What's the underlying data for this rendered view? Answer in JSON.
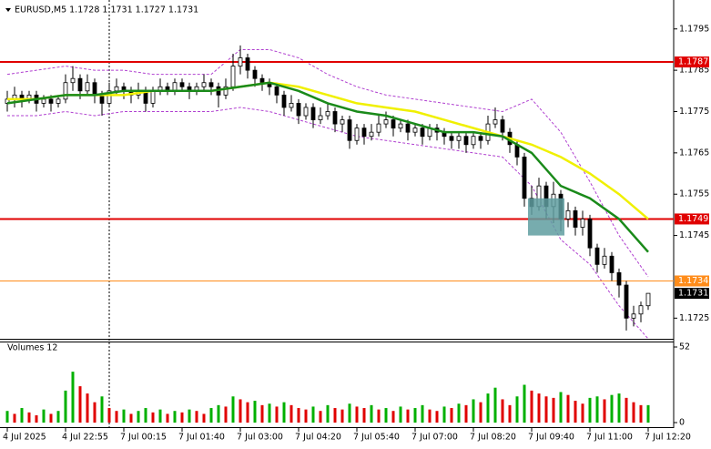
{
  "chart_data": {
    "type": "candlestick",
    "title": "EURUSD,M5  1.1728 1.1731 1.1727 1.1731",
    "categories": [
      "4 Jul 2025",
      null,
      null,
      null,
      null,
      null,
      null,
      null,
      "4 Jul 22:55",
      null,
      null,
      null,
      null,
      null,
      null,
      null,
      "7 Jul 00:15",
      null,
      null,
      null,
      null,
      null,
      null,
      null,
      "7 Jul 01:40",
      null,
      null,
      null,
      null,
      null,
      null,
      null,
      "7 Jul 03:00",
      null,
      null,
      null,
      null,
      null,
      null,
      null,
      "7 Jul 04:20",
      null,
      null,
      null,
      null,
      null,
      null,
      null,
      "7 Jul 05:40",
      null,
      null,
      null,
      null,
      null,
      null,
      null,
      "7 Jul 07:00",
      null,
      null,
      null,
      null,
      null,
      null,
      null,
      "7 Jul 08:20",
      null,
      null,
      null,
      null,
      null,
      null,
      null,
      "7 Jul 09:40",
      null,
      null,
      null,
      null,
      null,
      null,
      null,
      "7 Jul 11:00",
      null,
      null,
      null,
      null,
      null,
      null,
      null,
      "7 Jul 12:20"
    ],
    "open": [
      1.1777,
      1.1778,
      1.1779,
      1.1778,
      1.1779,
      1.1777,
      1.1778,
      1.1777,
      1.1778,
      1.1782,
      1.1783,
      1.178,
      1.1782,
      1.1779,
      1.1777,
      1.178,
      1.1781,
      1.178,
      1.1779,
      1.178,
      1.1777,
      1.178,
      1.1781,
      1.178,
      1.1782,
      1.1781,
      1.178,
      1.1781,
      1.1782,
      1.1781,
      1.1779,
      1.1781,
      1.1786,
      1.1788,
      1.1785,
      1.1783,
      1.1782,
      1.1781,
      1.1779,
      1.1776,
      1.1777,
      1.1774,
      1.1776,
      1.1773,
      1.1774,
      1.1775,
      1.1772,
      1.1773,
      1.1768,
      1.1771,
      1.1769,
      1.177,
      1.1772,
      1.1773,
      1.1771,
      1.1772,
      1.177,
      1.1771,
      1.1769,
      1.1771,
      1.177,
      1.1769,
      1.1768,
      1.1769,
      1.1767,
      1.1769,
      1.1768,
      1.1772,
      1.1773,
      1.177,
      1.1767,
      1.1764,
      1.1754,
      1.1752,
      1.1757,
      1.1752,
      1.1755,
      1.1749,
      1.1751,
      1.1747,
      1.1749,
      1.1742,
      1.1738,
      1.174,
      1.1736,
      1.1733,
      1.1725,
      1.1726,
      1.1728
    ],
    "high": [
      1.178,
      1.1781,
      1.178,
      1.178,
      1.178,
      1.1779,
      1.1779,
      1.1779,
      1.1784,
      1.1786,
      1.1784,
      1.1784,
      1.1783,
      1.178,
      1.1782,
      1.1783,
      1.1782,
      1.1781,
      1.1782,
      1.1781,
      1.1781,
      1.1783,
      1.1782,
      1.1783,
      1.1783,
      1.1782,
      1.1782,
      1.1784,
      1.1783,
      1.1782,
      1.1783,
      1.1789,
      1.1791,
      1.1789,
      1.1786,
      1.1784,
      1.1783,
      1.1782,
      1.178,
      1.1779,
      1.1778,
      1.1777,
      1.1777,
      1.1776,
      1.1777,
      1.1776,
      1.1774,
      1.1774,
      1.1772,
      1.1772,
      1.1772,
      1.1774,
      1.1775,
      1.1774,
      1.1773,
      1.1773,
      1.1772,
      1.1772,
      1.1772,
      1.1772,
      1.1771,
      1.177,
      1.177,
      1.177,
      1.177,
      1.177,
      1.1774,
      1.1776,
      1.1774,
      1.1771,
      1.1768,
      1.1765,
      1.1757,
      1.1759,
      1.1758,
      1.1758,
      1.1756,
      1.1753,
      1.1752,
      1.1751,
      1.175,
      1.1743,
      1.1742,
      1.1741,
      1.1737,
      1.1734,
      1.1728,
      1.1729,
      1.1731
    ],
    "low": [
      1.1775,
      1.1776,
      1.1776,
      1.1777,
      1.1775,
      1.1776,
      1.1775,
      1.1776,
      1.1777,
      1.178,
      1.1778,
      1.1779,
      1.1777,
      1.1774,
      1.1776,
      1.1779,
      1.1778,
      1.1777,
      1.1778,
      1.1775,
      1.1776,
      1.1779,
      1.1779,
      1.1779,
      1.178,
      1.1778,
      1.1779,
      1.178,
      1.1779,
      1.1776,
      1.1778,
      1.178,
      1.1784,
      1.1783,
      1.1781,
      1.178,
      1.1779,
      1.1777,
      1.1774,
      1.1775,
      1.1772,
      1.1773,
      1.1771,
      1.1772,
      1.1773,
      1.177,
      1.177,
      1.1766,
      1.1767,
      1.1767,
      1.1768,
      1.1769,
      1.1771,
      1.1769,
      1.177,
      1.1768,
      1.1769,
      1.1767,
      1.1768,
      1.1768,
      1.1767,
      1.1766,
      1.1766,
      1.1765,
      1.1766,
      1.1766,
      1.1767,
      1.1771,
      1.1768,
      1.1765,
      1.1762,
      1.1752,
      1.175,
      1.1751,
      1.1749,
      1.1748,
      1.1746,
      1.1747,
      1.1745,
      1.1745,
      1.174,
      1.1736,
      1.1737,
      1.1734,
      1.173,
      1.1722,
      1.1723,
      1.1724,
      1.1727
    ],
    "close": [
      1.1778,
      1.1779,
      1.1778,
      1.1779,
      1.1777,
      1.1778,
      1.1777,
      1.1778,
      1.1782,
      1.1783,
      1.178,
      1.1782,
      1.1779,
      1.1777,
      1.178,
      1.1781,
      1.178,
      1.1779,
      1.178,
      1.1777,
      1.178,
      1.1781,
      1.178,
      1.1782,
      1.1781,
      1.178,
      1.1781,
      1.1782,
      1.1781,
      1.1779,
      1.1781,
      1.1786,
      1.1788,
      1.1785,
      1.1783,
      1.1782,
      1.1781,
      1.1779,
      1.1776,
      1.1777,
      1.1774,
      1.1776,
      1.1773,
      1.1774,
      1.1775,
      1.1772,
      1.1773,
      1.1768,
      1.1771,
      1.1769,
      1.177,
      1.1772,
      1.1773,
      1.1771,
      1.1772,
      1.177,
      1.1771,
      1.1769,
      1.1771,
      1.177,
      1.1769,
      1.1768,
      1.1769,
      1.1767,
      1.1769,
      1.1768,
      1.1772,
      1.1773,
      1.177,
      1.1767,
      1.1764,
      1.1754,
      1.1752,
      1.1757,
      1.1752,
      1.1755,
      1.1749,
      1.1751,
      1.1747,
      1.1749,
      1.1742,
      1.1738,
      1.174,
      1.1736,
      1.1733,
      1.1725,
      1.1726,
      1.1728,
      1.1731
    ],
    "up_color": "#ffffff",
    "down_color": "#000000",
    "ylim": [
      1.172,
      1.1802
    ],
    "yticks": [
      1.1795,
      1.1785,
      1.1775,
      1.1765,
      1.1755,
      1.1745,
      1.1725
    ],
    "lines": [
      {
        "color": "#b040d0",
        "style": "dashed",
        "x": [
          0,
          4,
          8,
          12,
          16,
          20,
          24,
          28,
          32,
          36,
          40,
          44,
          48,
          52,
          56,
          60,
          64,
          68,
          72,
          76,
          80,
          84,
          88
        ],
        "values": [
          1.1784,
          1.1785,
          1.1786,
          1.1785,
          1.1785,
          1.1784,
          1.1784,
          1.1784,
          1.179,
          1.179,
          1.1788,
          1.1784,
          1.1781,
          1.1779,
          1.1778,
          1.1777,
          1.1776,
          1.1775,
          1.1778,
          1.177,
          1.1758,
          1.1745,
          1.1735
        ]
      },
      {
        "color": "#b040d0",
        "style": "dashed",
        "x": [
          0,
          4,
          8,
          12,
          16,
          20,
          24,
          28,
          32,
          36,
          40,
          44,
          48,
          52,
          56,
          60,
          64,
          68,
          72,
          76,
          80,
          84,
          88
        ],
        "values": [
          1.1774,
          1.1774,
          1.1775,
          1.1774,
          1.1775,
          1.1775,
          1.1775,
          1.1775,
          1.1776,
          1.1775,
          1.1773,
          1.1771,
          1.1769,
          1.1768,
          1.1767,
          1.1766,
          1.1765,
          1.1764,
          1.1757,
          1.1744,
          1.1738,
          1.1728,
          1.172
        ]
      },
      {
        "color": "#f0f000",
        "style": "solid",
        "x": [
          0,
          4,
          8,
          12,
          16,
          20,
          24,
          28,
          32,
          36,
          40,
          44,
          48,
          52,
          56,
          60,
          64,
          68,
          72,
          76,
          80,
          84,
          88
        ],
        "values": [
          1.1778,
          1.1778,
          1.1779,
          1.1779,
          1.1779,
          1.178,
          1.178,
          1.178,
          1.1781,
          1.1782,
          1.1781,
          1.1779,
          1.1777,
          1.1776,
          1.1775,
          1.1773,
          1.1771,
          1.1769,
          1.1767,
          1.1764,
          1.176,
          1.1755,
          1.1749
        ]
      },
      {
        "color": "#1a8a1a",
        "style": "solid",
        "x": [
          0,
          4,
          8,
          12,
          16,
          20,
          24,
          28,
          32,
          36,
          40,
          44,
          48,
          52,
          56,
          60,
          64,
          68,
          72,
          76,
          80,
          84,
          88
        ],
        "values": [
          1.1777,
          1.1778,
          1.1779,
          1.1779,
          1.178,
          1.178,
          1.178,
          1.178,
          1.1781,
          1.1782,
          1.178,
          1.1777,
          1.1775,
          1.1774,
          1.1772,
          1.177,
          1.177,
          1.1769,
          1.1765,
          1.1757,
          1.1754,
          1.1749,
          1.1741
        ]
      }
    ],
    "levels": [
      {
        "value": 1.1787,
        "color": "#e00000"
      },
      {
        "value": 1.1749,
        "color": "#e00000"
      },
      {
        "value": 1.1734,
        "color": "#ff8c1a"
      }
    ],
    "last_price": 1.1731,
    "zone": {
      "x": [
        72,
        76
      ],
      "y": [
        1.1745,
        1.1754
      ],
      "color": "#5f9ea0"
    },
    "separator": 14,
    "volume": {
      "title": "Volumes 12",
      "values": [
        8,
        6,
        10,
        7,
        5,
        9,
        6,
        8,
        22,
        35,
        25,
        20,
        14,
        18,
        10,
        8,
        9,
        6,
        8,
        10,
        7,
        9,
        6,
        8,
        7,
        9,
        8,
        6,
        10,
        12,
        11,
        18,
        16,
        14,
        15,
        12,
        13,
        11,
        14,
        12,
        10,
        9,
        11,
        8,
        12,
        10,
        9,
        13,
        11,
        10,
        12,
        9,
        10,
        8,
        11,
        9,
        10,
        12,
        9,
        8,
        11,
        10,
        13,
        12,
        16,
        14,
        20,
        24,
        16,
        12,
        18,
        26,
        22,
        20,
        18,
        17,
        21,
        19,
        15,
        13,
        17,
        18,
        16,
        19,
        20,
        17,
        14,
        12,
        12
      ],
      "up_color": "#00b000",
      "down_color": "#e00000",
      "ylim": [
        0,
        52
      ],
      "yticks": [
        0,
        52
      ]
    }
  }
}
